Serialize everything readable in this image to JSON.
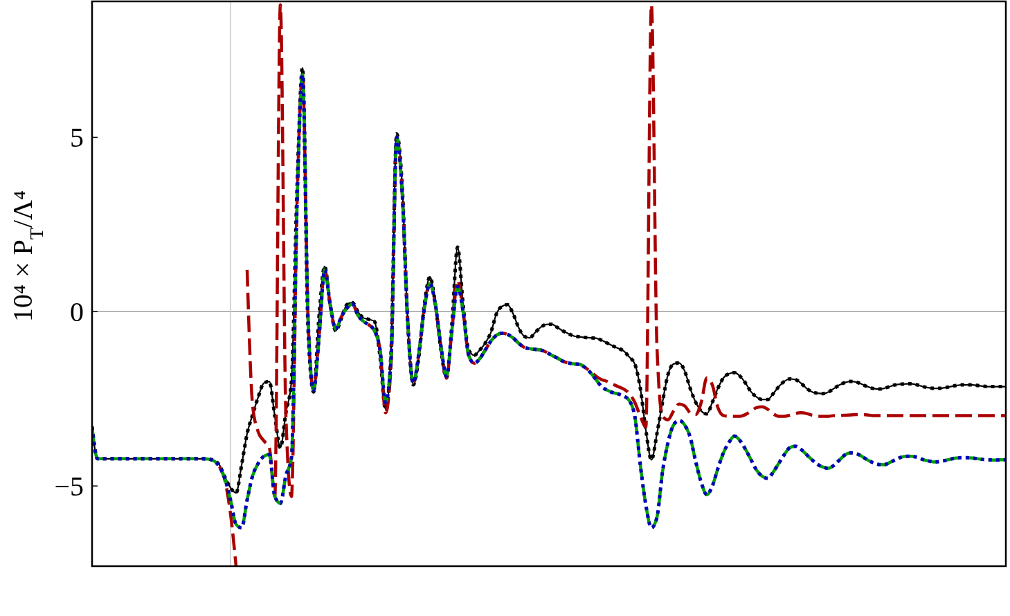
{
  "chart_data": {
    "type": "line",
    "ylabel": "10⁴ × P$_{T}$/Λ⁴",
    "categories": [
      null,
      null,
      null,
      null,
      null,
      null,
      null,
      null,
      null,
      null,
      null,
      null,
      null,
      null,
      null,
      null,
      null,
      null,
      null,
      null,
      null,
      null,
      null,
      null,
      null,
      null,
      null,
      null,
      null,
      null,
      null,
      null,
      null,
      null,
      null,
      null,
      null,
      null,
      null,
      null,
      null,
      null,
      null,
      null,
      null,
      null,
      null,
      null,
      null,
      null,
      null,
      null,
      null,
      null,
      null,
      null,
      null,
      null,
      null,
      null,
      null,
      null,
      null,
      null,
      null,
      null,
      null,
      null,
      null,
      null,
      null,
      null,
      null,
      null,
      null,
      null,
      null,
      null,
      null,
      null,
      null,
      null,
      null,
      null,
      null,
      null,
      null,
      null,
      null,
      null,
      null,
      null,
      null,
      null,
      null,
      null,
      null,
      null,
      null,
      null,
      null,
      null,
      null,
      null,
      null,
      null,
      null,
      null,
      null,
      null,
      null,
      null,
      null,
      null,
      null,
      null,
      null,
      null,
      null,
      null,
      null,
      null,
      null,
      null,
      null,
      null,
      null,
      null,
      null,
      null,
      null,
      null,
      null,
      null,
      null,
      null,
      null,
      null,
      null,
      null,
      null,
      null,
      null,
      null,
      null,
      null,
      null,
      null,
      null,
      null,
      null,
      null,
      null,
      null,
      null,
      null,
      null,
      null,
      null,
      null,
      null,
      null,
      null,
      null,
      null,
      null
    ],
    "ylim": [
      -7.3,
      8.9
    ],
    "yticks": [
      {
        "value": -5,
        "label": "−5"
      },
      0,
      5
    ],
    "tick_labels": "y",
    "ref_lines": [
      {
        "axis": "y",
        "value": 0,
        "color": "#a0a0a0"
      }
    ],
    "series": [
      {
        "color": "#000000",
        "line_style": "solid",
        "values": [
          -3.3,
          -4.22,
          -4.22,
          -4.22,
          -4.22,
          -4.22,
          -4.22,
          -4.22,
          -4.22,
          -4.22,
          -4.22,
          -4.22,
          -4.22,
          -4.22,
          -4.22,
          -4.22,
          -4.22,
          -4.22,
          -4.22,
          -4.22,
          -4.22,
          -4.23,
          -4.27,
          -4.4,
          -4.75,
          -5.05,
          -5.2,
          -4.4,
          -3.5,
          -2.95,
          -2.45,
          -2.05,
          -2.0,
          -3.0,
          -3.9,
          -2.9,
          -2.0,
          3.5,
          7.0,
          -0.5,
          -2.3,
          -0.1,
          1.3,
          0.2,
          -0.55,
          -0.2,
          0.2,
          0.26,
          0.0,
          -0.18,
          -0.22,
          -0.28,
          -1.3,
          -2.8,
          -1.1,
          5.1,
          3.6,
          -0.3,
          -2.1,
          -1.3,
          0.2,
          1.0,
          0.2,
          -1.1,
          -1.9,
          -0.3,
          1.85,
          0.2,
          -1.1,
          -1.25,
          -1.1,
          -0.9,
          -0.6,
          -0.07,
          0.15,
          0.2,
          -0.05,
          -0.45,
          -0.7,
          -0.75,
          -0.6,
          -0.45,
          -0.37,
          -0.36,
          -0.45,
          -0.55,
          -0.63,
          -0.7,
          -0.72,
          -0.74,
          -0.75,
          -0.76,
          -0.82,
          -0.9,
          -0.98,
          -1.05,
          -1.13,
          -1.3,
          -1.5,
          -2.2,
          -3.4,
          -4.25,
          -3.5,
          -2.6,
          -1.8,
          -1.5,
          -1.47,
          -1.7,
          -2.2,
          -2.6,
          -2.85,
          -2.93,
          -2.6,
          -2.2,
          -1.9,
          -1.78,
          -1.75,
          -1.85,
          -2.05,
          -2.3,
          -2.45,
          -2.52,
          -2.52,
          -2.35,
          -2.15,
          -2.0,
          -1.93,
          -1.95,
          -2.05,
          -2.2,
          -2.3,
          -2.34,
          -2.35,
          -2.3,
          -2.2,
          -2.1,
          -2.03,
          -2.0,
          -2.02,
          -2.08,
          -2.15,
          -2.2,
          -2.22,
          -2.2,
          -2.15,
          -2.1,
          -2.08,
          -2.07,
          -2.07,
          -2.1,
          -2.15,
          -2.18,
          -2.2,
          -2.2,
          -2.18,
          -2.15,
          -2.12,
          -2.1,
          -2.1,
          -2.1,
          -2.12,
          -2.14,
          -2.15,
          -2.15,
          -2.15,
          -2.15
        ]
      },
      {
        "color": "#000000",
        "line_style": "dotted",
        "values": [
          -3.3,
          -4.22,
          -4.22,
          -4.22,
          -4.22,
          -4.22,
          -4.22,
          -4.22,
          -4.22,
          -4.22,
          -4.22,
          -4.22,
          -4.22,
          -4.22,
          -4.22,
          -4.22,
          -4.22,
          -4.22,
          -4.22,
          -4.22,
          -4.22,
          -4.23,
          -4.27,
          -4.4,
          -4.75,
          -5.05,
          -5.2,
          -4.4,
          -3.5,
          -2.95,
          -2.45,
          -2.05,
          -2.0,
          -3.0,
          -3.9,
          -2.9,
          -2.0,
          3.5,
          7.0,
          -0.5,
          -2.3,
          -0.1,
          1.3,
          0.2,
          -0.55,
          -0.2,
          0.2,
          0.26,
          0.0,
          -0.18,
          -0.22,
          -0.28,
          -1.3,
          -2.8,
          -1.1,
          5.1,
          3.6,
          -0.3,
          -2.1,
          -1.3,
          0.2,
          1.0,
          0.2,
          -1.1,
          -1.9,
          -0.3,
          1.85,
          0.2,
          -1.1,
          -1.25,
          -1.1,
          -0.9,
          -0.6,
          -0.07,
          0.15,
          0.2,
          -0.05,
          -0.45,
          -0.7,
          -0.75,
          -0.6,
          -0.45,
          -0.37,
          -0.36,
          -0.45,
          -0.55,
          -0.63,
          -0.7,
          -0.72,
          -0.74,
          -0.75,
          -0.76,
          -0.82,
          -0.9,
          -0.98,
          -1.05,
          -1.13,
          -1.3,
          -1.5,
          -2.2,
          -3.4,
          -4.25,
          -3.5,
          -2.6,
          -1.8,
          -1.5,
          -1.47,
          -1.7,
          -2.2,
          -2.6,
          -2.85,
          -2.93,
          -2.6,
          -2.2,
          -1.9,
          -1.78,
          -1.75,
          -1.85,
          -2.05,
          -2.3,
          -2.45,
          -2.52,
          -2.52,
          -2.35,
          -2.15,
          -2.0,
          -1.93,
          -1.95,
          -2.05,
          -2.2,
          -2.3,
          -2.34,
          -2.35,
          -2.3,
          -2.2,
          -2.1,
          -2.03,
          -2.0,
          -2.02,
          -2.08,
          -2.15,
          -2.2,
          -2.22,
          -2.2,
          -2.15,
          -2.1,
          -2.08,
          -2.07,
          -2.07,
          -2.1,
          -2.15,
          -2.18,
          -2.2,
          -2.2,
          -2.18,
          -2.15,
          -2.12,
          -2.1,
          -2.1,
          -2.1,
          -2.12,
          -2.14,
          -2.15,
          -2.15,
          -2.15,
          -2.15
        ]
      },
      {
        "color": "#aa0000",
        "line_style": "dashed",
        "values": [
          null,
          null,
          null,
          null,
          null,
          null,
          null,
          null,
          null,
          null,
          null,
          null,
          null,
          null,
          null,
          null,
          null,
          null,
          null,
          null,
          null,
          null,
          null,
          -4.45,
          -4.85,
          -5.8,
          -7.3,
          null,
          1.2,
          -2.7,
          -3.45,
          -3.7,
          -3.9,
          -5.3,
          8.8,
          -3.0,
          -5.3,
          3.0,
          6.8,
          -0.2,
          -2.25,
          -0.7,
          1.2,
          0.2,
          -0.5,
          -0.15,
          0.1,
          0.22,
          -0.1,
          -0.28,
          -0.38,
          -0.55,
          -1.1,
          -2.9,
          -1.5,
          5.0,
          3.4,
          -0.3,
          -2.05,
          -1.2,
          0.1,
          0.8,
          0.2,
          -1.0,
          -1.9,
          -0.5,
          0.9,
          0.0,
          -1.25,
          -1.48,
          -1.35,
          -1.1,
          -0.85,
          -0.68,
          -0.62,
          -0.65,
          -0.75,
          -0.9,
          -1.02,
          -1.06,
          -1.08,
          -1.1,
          -1.16,
          -1.25,
          -1.33,
          -1.42,
          -1.47,
          -1.5,
          -1.51,
          -1.6,
          -1.72,
          -1.85,
          -1.95,
          -2.0,
          -2.08,
          -2.15,
          -2.22,
          -2.35,
          -2.6,
          -3.0,
          -3.3,
          8.8,
          -1.0,
          -3.0,
          -3.1,
          -2.85,
          -2.65,
          -2.7,
          -2.9,
          -2.95,
          -2.6,
          -1.9,
          -2.1,
          -2.75,
          -2.98,
          -3.0,
          -3.0,
          -3.0,
          -2.95,
          -2.85,
          -2.75,
          -2.73,
          -2.8,
          -2.93,
          -3.0,
          -3.0,
          -2.97,
          -2.92,
          -2.9,
          -2.92,
          -2.97,
          -3.0,
          -3.0,
          -3.0,
          -2.98,
          -2.98,
          -2.97,
          -2.96,
          -2.95,
          -2.95,
          -2.96,
          -2.98,
          -2.98,
          -2.98,
          -2.98,
          -2.98,
          -2.98,
          -2.98,
          -2.98,
          -2.98,
          -2.98,
          -2.98,
          -2.98,
          -2.98,
          -2.98,
          -2.98,
          -2.98,
          -2.98,
          -2.98,
          -2.98,
          -2.98,
          -2.98,
          -2.98,
          -2.98,
          -2.98,
          -2.98
        ]
      },
      {
        "color": "#00a000",
        "line_style": "dashed",
        "values": [
          -3.3,
          -4.22,
          -4.22,
          -4.22,
          -4.22,
          -4.22,
          -4.22,
          -4.22,
          -4.22,
          -4.22,
          -4.22,
          -4.22,
          -4.22,
          -4.22,
          -4.22,
          -4.22,
          -4.22,
          -4.22,
          -4.22,
          -4.22,
          -4.22,
          -4.23,
          -4.28,
          -4.45,
          -4.8,
          -5.4,
          -6.1,
          -6.2,
          -5.4,
          -4.7,
          -4.35,
          -4.15,
          -4.1,
          -5.3,
          -5.5,
          -4.7,
          -4.2,
          3.0,
          6.8,
          -0.2,
          -2.25,
          -0.7,
          1.2,
          0.2,
          -0.5,
          -0.15,
          0.1,
          0.22,
          -0.1,
          -0.28,
          -0.38,
          -0.55,
          -1.1,
          -2.6,
          -1.3,
          5.0,
          3.4,
          -0.3,
          -2.05,
          -1.2,
          0.1,
          0.8,
          0.2,
          -1.0,
          -1.85,
          -0.5,
          0.72,
          0.0,
          -1.25,
          -1.48,
          -1.35,
          -1.1,
          -0.85,
          -0.68,
          -0.62,
          -0.65,
          -0.75,
          -0.9,
          -1.02,
          -1.06,
          -1.08,
          -1.1,
          -1.16,
          -1.25,
          -1.33,
          -1.42,
          -1.47,
          -1.5,
          -1.51,
          -1.6,
          -1.75,
          -1.95,
          -2.15,
          -2.25,
          -2.32,
          -2.36,
          -2.42,
          -2.55,
          -3.0,
          -4.4,
          -5.55,
          -6.2,
          -5.9,
          -4.6,
          -3.75,
          -3.25,
          -3.12,
          -3.25,
          -3.6,
          -4.3,
          -4.9,
          -5.25,
          -5.0,
          -4.5,
          -4.05,
          -3.75,
          -3.57,
          -3.7,
          -3.95,
          -4.25,
          -4.55,
          -4.72,
          -4.78,
          -4.6,
          -4.35,
          -4.1,
          -3.9,
          -3.86,
          -3.95,
          -4.1,
          -4.25,
          -4.38,
          -4.46,
          -4.49,
          -4.4,
          -4.25,
          -4.1,
          -4.05,
          -4.07,
          -4.15,
          -4.25,
          -4.33,
          -4.38,
          -4.39,
          -4.33,
          -4.25,
          -4.18,
          -4.15,
          -4.15,
          -4.18,
          -4.24,
          -4.28,
          -4.31,
          -4.3,
          -4.27,
          -4.23,
          -4.2,
          -4.19,
          -4.19,
          -4.2,
          -4.22,
          -4.24,
          -4.25,
          -4.26,
          -4.25,
          -4.25
        ]
      },
      {
        "color": "#0000bb",
        "line_style": "dotted",
        "values": [
          -3.3,
          -4.22,
          -4.22,
          -4.22,
          -4.22,
          -4.22,
          -4.22,
          -4.22,
          -4.22,
          -4.22,
          -4.22,
          -4.22,
          -4.22,
          -4.22,
          -4.22,
          -4.22,
          -4.22,
          -4.22,
          -4.22,
          -4.22,
          -4.22,
          -4.23,
          -4.28,
          -4.45,
          -4.8,
          -5.4,
          -6.1,
          -6.2,
          -5.4,
          -4.7,
          -4.35,
          -4.15,
          -4.1,
          -5.3,
          -5.5,
          -4.7,
          -4.2,
          3.0,
          6.8,
          -0.2,
          -2.25,
          -0.7,
          1.2,
          0.2,
          -0.5,
          -0.15,
          0.1,
          0.22,
          -0.1,
          -0.28,
          -0.38,
          -0.55,
          -1.1,
          -2.6,
          -1.3,
          5.0,
          3.4,
          -0.3,
          -2.05,
          -1.2,
          0.1,
          0.8,
          0.2,
          -1.0,
          -1.85,
          -0.5,
          0.72,
          0.0,
          -1.25,
          -1.48,
          -1.35,
          -1.1,
          -0.85,
          -0.68,
          -0.62,
          -0.65,
          -0.75,
          -0.9,
          -1.02,
          -1.06,
          -1.08,
          -1.1,
          -1.16,
          -1.25,
          -1.33,
          -1.42,
          -1.47,
          -1.5,
          -1.51,
          -1.6,
          -1.75,
          -1.95,
          -2.15,
          -2.25,
          -2.32,
          -2.36,
          -2.42,
          -2.55,
          -3.0,
          -4.4,
          -5.55,
          -6.2,
          -5.9,
          -4.6,
          -3.75,
          -3.25,
          -3.12,
          -3.25,
          -3.6,
          -4.3,
          -4.9,
          -5.25,
          -5.0,
          -4.5,
          -4.05,
          -3.75,
          -3.57,
          -3.7,
          -3.95,
          -4.25,
          -4.55,
          -4.72,
          -4.78,
          -4.6,
          -4.35,
          -4.1,
          -3.9,
          -3.86,
          -3.95,
          -4.1,
          -4.25,
          -4.38,
          -4.46,
          -4.49,
          -4.4,
          -4.25,
          -4.1,
          -4.05,
          -4.07,
          -4.15,
          -4.25,
          -4.33,
          -4.38,
          -4.39,
          -4.33,
          -4.25,
          -4.18,
          -4.15,
          -4.15,
          -4.18,
          -4.24,
          -4.28,
          -4.31,
          -4.3,
          -4.27,
          -4.23,
          -4.2,
          -4.19,
          -4.19,
          -4.2,
          -4.22,
          -4.24,
          -4.25,
          -4.26,
          -4.25,
          -4.25
        ]
      }
    ]
  }
}
